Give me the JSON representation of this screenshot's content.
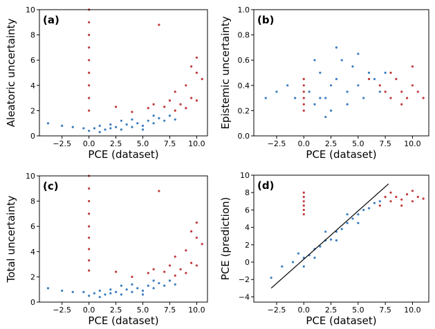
{
  "chart_data": [
    {
      "type": "scatter",
      "panel_label": "(a)",
      "xlabel": "PCE (dataset)",
      "ylabel": "Aleatoric uncertainty",
      "xlim": [
        -4.6,
        11
      ],
      "ylim": [
        0,
        10
      ],
      "xticks": [
        {
          "value": -2.5,
          "label": "−2.5"
        },
        {
          "value": 0,
          "label": "0.0"
        },
        2.5,
        {
          "value": 5,
          "label": "5.0"
        },
        7.5,
        {
          "value": 10,
          "label": "10.0"
        }
      ],
      "yticks": [
        0,
        2,
        4,
        6,
        8,
        10
      ],
      "series": [
        {
          "color": "#3a7dbf",
          "x": [
            -3.8,
            -2.5,
            -1.5,
            -0.5,
            0.5,
            1.0,
            1.5,
            2.0,
            2.5,
            3.0,
            3.5,
            4.0,
            4.5,
            5.0,
            5.5,
            6.0,
            6.5,
            7.0,
            7.5,
            8.0,
            3.0,
            2.0,
            4.0,
            6.0,
            0.0,
            1.0,
            5.0
          ],
          "y": [
            1.0,
            0.8,
            0.7,
            0.6,
            0.6,
            0.8,
            0.5,
            0.6,
            0.7,
            0.5,
            0.9,
            0.7,
            1.0,
            0.8,
            1.2,
            1.0,
            1.4,
            1.2,
            1.6,
            1.3,
            1.2,
            0.9,
            1.3,
            1.6,
            0.4,
            0.3,
            0.5
          ]
        },
        {
          "color": "#c0393b",
          "x": [
            0,
            0,
            0,
            0,
            0,
            0,
            0,
            0,
            0,
            7,
            7.5,
            8,
            8.5,
            9,
            9.5,
            10,
            10.5,
            9,
            10,
            6.5,
            6,
            5.5,
            8,
            10,
            4,
            2.5,
            9.5
          ],
          "y": [
            2,
            3,
            4,
            5,
            6,
            7,
            8,
            9,
            10,
            2.3,
            2.8,
            3.5,
            2.5,
            4,
            3,
            5,
            4.5,
            2.2,
            2.8,
            8.8,
            2.5,
            2.2,
            2.0,
            6.2,
            1.9,
            2.3,
            5.5
          ]
        }
      ]
    },
    {
      "type": "scatter",
      "panel_label": "(b)",
      "xlabel": "PCE (dataset)",
      "ylabel": "Epistemic uncertainty",
      "xlim": [
        -4.6,
        11.5
      ],
      "ylim": [
        0,
        1
      ],
      "xticks": [
        {
          "value": -2.5,
          "label": "−2.5"
        },
        {
          "value": 0,
          "label": "0.0"
        },
        2.5,
        {
          "value": 5,
          "label": "5.0"
        },
        7.5,
        {
          "value": 10,
          "label": "10.0"
        }
      ],
      "yticks": [
        {
          "value": 0,
          "label": "0.0"
        },
        0.2,
        0.4,
        0.6,
        0.8,
        {
          "value": 1,
          "label": "1.0"
        }
      ],
      "series": [
        {
          "color": "#3a7dbf",
          "x": [
            -3.5,
            -2.5,
            -1.5,
            -0.8,
            0.5,
            1,
            1.5,
            2,
            2.5,
            3,
            3.5,
            4,
            4.5,
            5,
            5.5,
            6,
            6.5,
            7,
            3,
            2,
            4,
            1,
            5,
            7.5,
            2.5,
            1.5
          ],
          "y": [
            0.3,
            0.35,
            0.4,
            0.3,
            0.35,
            0.25,
            0.5,
            0.3,
            0.2,
            0.45,
            0.6,
            0.35,
            0.55,
            0.4,
            0.3,
            0.5,
            0.45,
            0.35,
            0.7,
            0.15,
            0.25,
            0.6,
            0.65,
            0.5,
            0.4,
            0.3
          ]
        },
        {
          "color": "#c0393b",
          "x": [
            0,
            0,
            0,
            0,
            0,
            0,
            7,
            7.5,
            8,
            8.5,
            9,
            9.5,
            10,
            10.5,
            8,
            9,
            10,
            6,
            11
          ],
          "y": [
            0.2,
            0.25,
            0.3,
            0.35,
            0.4,
            0.45,
            0.4,
            0.35,
            0.3,
            0.45,
            0.35,
            0.3,
            0.4,
            0.35,
            0.5,
            0.25,
            0.55,
            0.45,
            0.3
          ]
        }
      ]
    },
    {
      "type": "scatter",
      "panel_label": "(c)",
      "xlabel": "PCE (dataset)",
      "ylabel": "Total uncertainty",
      "xlim": [
        -4.6,
        11
      ],
      "ylim": [
        0,
        10
      ],
      "xticks": [
        {
          "value": -2.5,
          "label": "−2.5"
        },
        {
          "value": 0,
          "label": "0.0"
        },
        2.5,
        {
          "value": 5,
          "label": "5.0"
        },
        7.5,
        {
          "value": 10,
          "label": "10.0"
        }
      ],
      "yticks": [
        0,
        2,
        4,
        6,
        8,
        10
      ],
      "series": [
        {
          "color": "#3a7dbf",
          "x": [
            -3.8,
            -2.5,
            -1.5,
            -0.5,
            0.5,
            1.0,
            1.5,
            2.0,
            2.5,
            3.0,
            3.5,
            4.0,
            4.5,
            5.0,
            5.5,
            6.0,
            6.5,
            7.0,
            7.5,
            8.0,
            3.0,
            2.0,
            4.0,
            6.0,
            0.0,
            1.0,
            5.0
          ],
          "y": [
            1.1,
            0.9,
            0.8,
            0.8,
            0.7,
            0.9,
            0.6,
            0.7,
            0.8,
            0.6,
            1.0,
            0.8,
            1.1,
            0.9,
            1.3,
            1.1,
            1.5,
            1.3,
            1.7,
            1.4,
            1.3,
            1.0,
            1.4,
            1.7,
            0.5,
            0.4,
            0.6
          ]
        },
        {
          "color": "#c0393b",
          "x": [
            0,
            0,
            0,
            0,
            0,
            0,
            0,
            0,
            0,
            7,
            7.5,
            8,
            8.5,
            9,
            9.5,
            10,
            10.5,
            9,
            10,
            6.5,
            6,
            5.5,
            8,
            10,
            4,
            2.5,
            9.5
          ],
          "y": [
            2.5,
            3.3,
            4.2,
            5.1,
            6,
            7,
            8,
            9,
            10,
            2.4,
            2.9,
            3.6,
            2.6,
            4.1,
            3.1,
            5.1,
            4.6,
            2.3,
            2.9,
            8.8,
            2.6,
            2.3,
            2.1,
            6.3,
            2.0,
            2.4,
            5.6
          ]
        }
      ]
    },
    {
      "type": "scatter",
      "panel_label": "(d)",
      "xlabel": "PCE (dataset)",
      "ylabel": "PCE (prediction)",
      "xlim": [
        -4.6,
        11.5
      ],
      "ylim": [
        -4.6,
        10
      ],
      "xticks": [
        {
          "value": -2.5,
          "label": "−2.5"
        },
        {
          "value": 0,
          "label": "0.0"
        },
        2.5,
        {
          "value": 5,
          "label": "5.0"
        },
        7.5,
        {
          "value": 10,
          "label": "10.0"
        }
      ],
      "yticks": [
        {
          "value": -4,
          "label": "−4"
        },
        {
          "value": -2,
          "label": "−2"
        },
        0,
        2,
        4,
        6,
        8,
        10
      ],
      "series": [
        {
          "color": "#3a7dbf",
          "x": [
            -3,
            -2,
            -1,
            0,
            0.5,
            1,
            1.5,
            2,
            2.5,
            3,
            3.5,
            4,
            4.5,
            5,
            5.5,
            6,
            6.5,
            7,
            1,
            2,
            3,
            4,
            5,
            0,
            -0.5
          ],
          "y": [
            -1.8,
            -0.5,
            0,
            0.5,
            0.8,
            1.5,
            1.8,
            2.5,
            2.6,
            3.5,
            3.8,
            4.5,
            5,
            5.5,
            6,
            6.2,
            6.8,
            7,
            0.5,
            3.5,
            2.5,
            5.5,
            4.5,
            -0.5,
            1
          ]
        },
        {
          "color": "#c0393b",
          "x": [
            0,
            0,
            0,
            0,
            0,
            0,
            7.5,
            8,
            8.5,
            9,
            9.5,
            10,
            10.5,
            11,
            8,
            9,
            10,
            7
          ],
          "y": [
            5.5,
            6,
            6.5,
            7,
            7.5,
            8,
            7.5,
            7,
            7.5,
            7.2,
            7.8,
            7,
            7.5,
            7.3,
            8,
            6.5,
            8.2,
            6.5
          ]
        }
      ],
      "line": {
        "color": "#000000",
        "x": [
          -3,
          7.8
        ],
        "y": [
          -3,
          9
        ]
      }
    }
  ]
}
